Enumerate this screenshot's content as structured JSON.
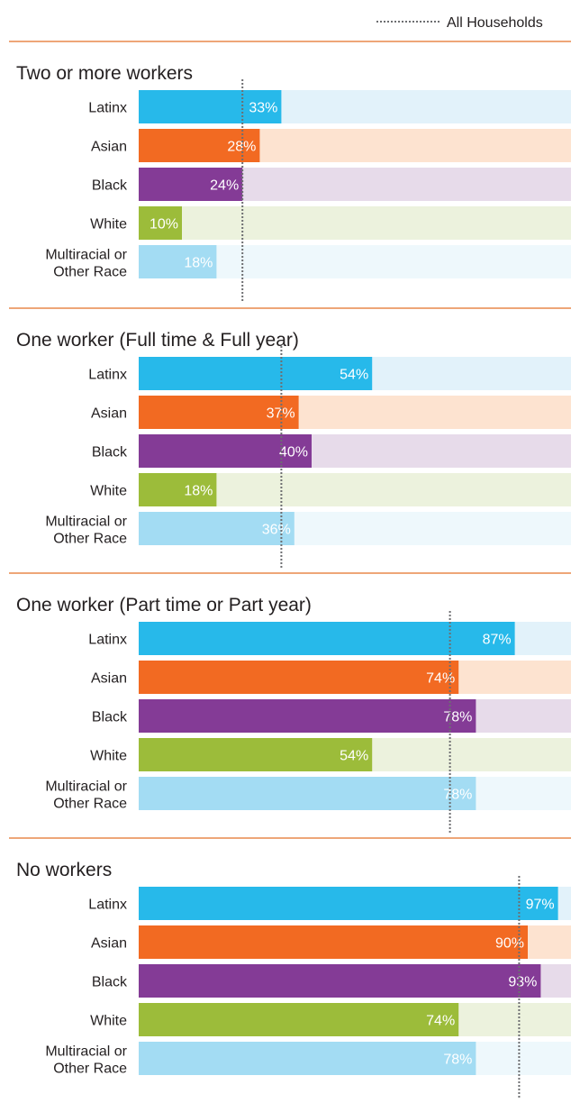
{
  "legend": {
    "label": "All Households"
  },
  "colors": {
    "Latinx": "#27b9ea",
    "Asian": "#f26a22",
    "Black": "#843b96",
    "White": "#9cbc3a",
    "Multiracial or Other Race": "#a3dcf3",
    "divider": "#e8894b",
    "reference_line": "#6d6e71"
  },
  "track_colors": {
    "Latinx": "#e2f2fa",
    "Asian": "#fde3d0",
    "Black": "#e7dbea",
    "White": "#ecf2dd",
    "Multiracial or Other Race": "#eef8fc"
  },
  "chart_data": {
    "type": "bar",
    "orientation": "horizontal",
    "xlim": [
      0,
      100
    ],
    "unit": "%",
    "categories": [
      "Latinx",
      "Asian",
      "Black",
      "White",
      "Multiracial or Other Race"
    ],
    "category_display": [
      "Latinx",
      "Asian",
      "Black",
      "White",
      "Multiracial or\nOther Race"
    ],
    "reference_series": "All Households",
    "panels": [
      {
        "title": "Two or more workers",
        "values": [
          33,
          28,
          24,
          10,
          18
        ],
        "all_households": 24
      },
      {
        "title": "One worker (Full time & Full year)",
        "values": [
          54,
          37,
          40,
          18,
          36
        ],
        "all_households": 33
      },
      {
        "title": "One worker (Part time or Part year)",
        "values": [
          87,
          74,
          78,
          54,
          78
        ],
        "all_households": 72
      },
      {
        "title": "No workers",
        "values": [
          97,
          90,
          93,
          74,
          78
        ],
        "all_households": 88
      }
    ]
  }
}
